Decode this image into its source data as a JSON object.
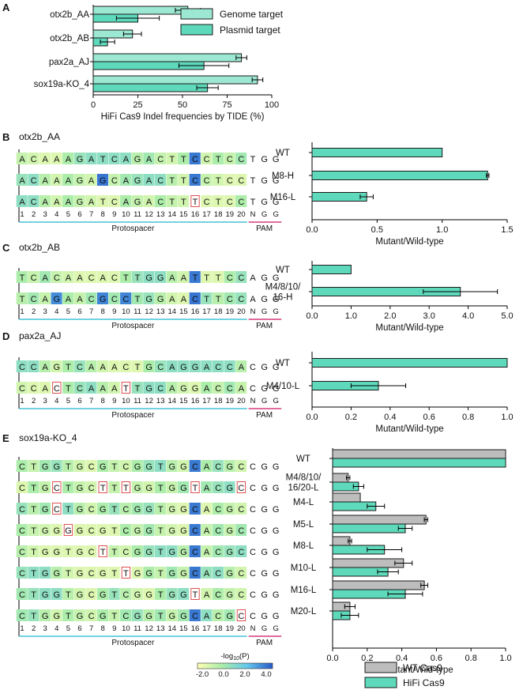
{
  "colors": {
    "genome": "#9ce8d2",
    "plasmid": "#5ed9bb",
    "wt_cas9": "#bdbdbd",
    "hifi_cas9": "#5ed9bb",
    "protospacer": "#47c2d6",
    "pam": "#d63c7a",
    "mismatch_box": "#e05050"
  },
  "panel_labels": [
    "A",
    "B",
    "C",
    "D",
    "E"
  ],
  "panel_titles": {
    "B": "otx2b_AA",
    "C": "otx2b_AB",
    "D": "pax2a_AJ",
    "E": "sox19a-KO_4"
  },
  "track_labels": {
    "protospacer": "Protospacer",
    "pam": "PAM"
  },
  "position_labels": [
    "1",
    "2",
    "3",
    "4",
    "5",
    "6",
    "7",
    "8",
    "9",
    "10",
    "11",
    "12",
    "13",
    "14",
    "15",
    "16",
    "17",
    "18",
    "19",
    "20",
    "N",
    "G",
    "G"
  ],
  "colorbar": {
    "title_prefix": "-log",
    "title_sub": "10",
    "title_suffix": "(P)",
    "ticks": [
      "-2.0",
      "0.0",
      "2.0",
      "4.0"
    ]
  },
  "seq_panels": [
    {
      "id": "B",
      "rows": [
        {
          "seq": "ACAAAGATCAGACTTCCTCCTGG",
          "mut": []
        },
        {
          "seq": "ACAAAGAGCAGACTTCCTCCTGG",
          "mut": []
        },
        {
          "seq": "ACAAAGATCAGACTTTCTCCTGG",
          "mut": [
            16
          ]
        }
      ]
    },
    {
      "id": "C",
      "rows": [
        {
          "seq": "TCACAACACTTGGAATTTCCAGG",
          "mut": []
        },
        {
          "seq": "TCAGAACGCCTGGAACTTCCAGG",
          "mut": []
        }
      ]
    },
    {
      "id": "D",
      "rows": [
        {
          "seq": "CCAGTCAAACTGCAGGACCACGG",
          "mut": []
        },
        {
          "seq": "CCACTCAAATTGCAGGACCACGG",
          "mut": [
            4,
            10
          ]
        }
      ]
    },
    {
      "id": "E",
      "rows": [
        {
          "seq": "CTGGTGCGTCGGTGGCACGCCGG",
          "mut": []
        },
        {
          "seq": "CTGCTGCTTTGGTGGTACGCCGG",
          "mut": [
            4,
            8,
            10,
            16,
            20
          ]
        },
        {
          "seq": "CTGCTGCGTCGGTGGCACGCCGG",
          "mut": [
            4
          ]
        },
        {
          "seq": "CTGGGGCGTCGGTGGCACGCCGG",
          "mut": [
            5
          ]
        },
        {
          "seq": "CTGGTGCTTCGGTGGCACGCCGG",
          "mut": [
            8
          ]
        },
        {
          "seq": "CTGGTGCGTTGGTGGCACGCCGG",
          "mut": [
            10
          ]
        },
        {
          "seq": "CTGGTGCGTCGGTGGTACGCCGG",
          "mut": [
            16
          ]
        },
        {
          "seq": "CTGGTGCGTCGGTGGCACGCCGG",
          "mut": [
            20
          ]
        }
      ]
    }
  ],
  "chart_data": [
    {
      "panel": "A",
      "type": "bar",
      "orientation": "horizontal",
      "categories": [
        "otx2b_AA",
        "otx2b_AB",
        "pax2a_AJ",
        "sox19a-KO_4"
      ],
      "series": [
        {
          "name": "Genome target",
          "values": [
            53,
            22,
            83,
            92
          ],
          "errors": [
            7,
            5,
            3,
            3
          ]
        },
        {
          "name": "Plasmid target",
          "values": [
            25,
            8,
            62,
            64
          ],
          "errors": [
            12,
            4,
            14,
            6
          ]
        }
      ],
      "xlabel": "HiFi Cas9 Indel frequencies by TIDE (%)",
      "xlim": [
        0,
        100
      ],
      "xticks": [
        "0",
        "25",
        "50",
        "75",
        "100"
      ],
      "legend": "top-right"
    },
    {
      "panel": "B",
      "type": "bar",
      "orientation": "horizontal",
      "categories": [
        "WT",
        "M8-H",
        "M16-L"
      ],
      "values": [
        1.0,
        1.35,
        0.42
      ],
      "errors": [
        0,
        0.01,
        0.05
      ],
      "xlabel": "Mutant/Wild-type",
      "xlim": [
        0,
        1.5
      ],
      "xticks": [
        "0.0",
        "0.5",
        "1.0",
        "1.5"
      ]
    },
    {
      "panel": "C",
      "type": "bar",
      "orientation": "horizontal",
      "categories": [
        "WT",
        "M4/8/10/\n16-H"
      ],
      "values": [
        1.0,
        3.8
      ],
      "errors": [
        0,
        0.95
      ],
      "xlabel": "Mutant/Wild-type",
      "xlim": [
        0,
        5
      ],
      "xticks": [
        "0.0",
        "1.0",
        "2.0",
        "3.0",
        "4.0",
        "5.0"
      ]
    },
    {
      "panel": "D",
      "type": "bar",
      "orientation": "horizontal",
      "categories": [
        "WT",
        "M4/10-L"
      ],
      "values": [
        1.0,
        0.34
      ],
      "errors": [
        0,
        0.14
      ],
      "xlabel": "Mutant/Wild-type",
      "xlim": [
        0,
        1
      ],
      "xticks": [
        "0.0",
        "0.2",
        "0.4",
        "0.6",
        "0.8",
        "1.0"
      ]
    },
    {
      "panel": "E",
      "type": "bar",
      "orientation": "horizontal",
      "categories": [
        "WT",
        "M4/8/10/\n16/20-L",
        "M4-L",
        "M5-L",
        "M8-L",
        "M10-L",
        "M16-L",
        "M20-L"
      ],
      "series": [
        {
          "name": "WT Cas9",
          "values": [
            1.0,
            0.09,
            0.16,
            0.54,
            0.1,
            0.41,
            0.53,
            0.1
          ],
          "errors": [
            0,
            0.01,
            0,
            0.01,
            0.01,
            0.05,
            0.02,
            0.03
          ]
        },
        {
          "name": "HiFi Cas9",
          "values": [
            1.0,
            0.15,
            0.25,
            0.42,
            0.3,
            0.32,
            0.42,
            0.1
          ],
          "errors": [
            0,
            0.03,
            0.05,
            0.04,
            0.1,
            0.06,
            0.1,
            0.05
          ]
        }
      ],
      "xlabel": "Mutant/Wild-type",
      "xlim": [
        0,
        1
      ],
      "xticks": [
        "0.0",
        "0.2",
        "0.4",
        "0.6",
        "0.8",
        "1.0"
      ],
      "legend": "bottom-right"
    }
  ]
}
